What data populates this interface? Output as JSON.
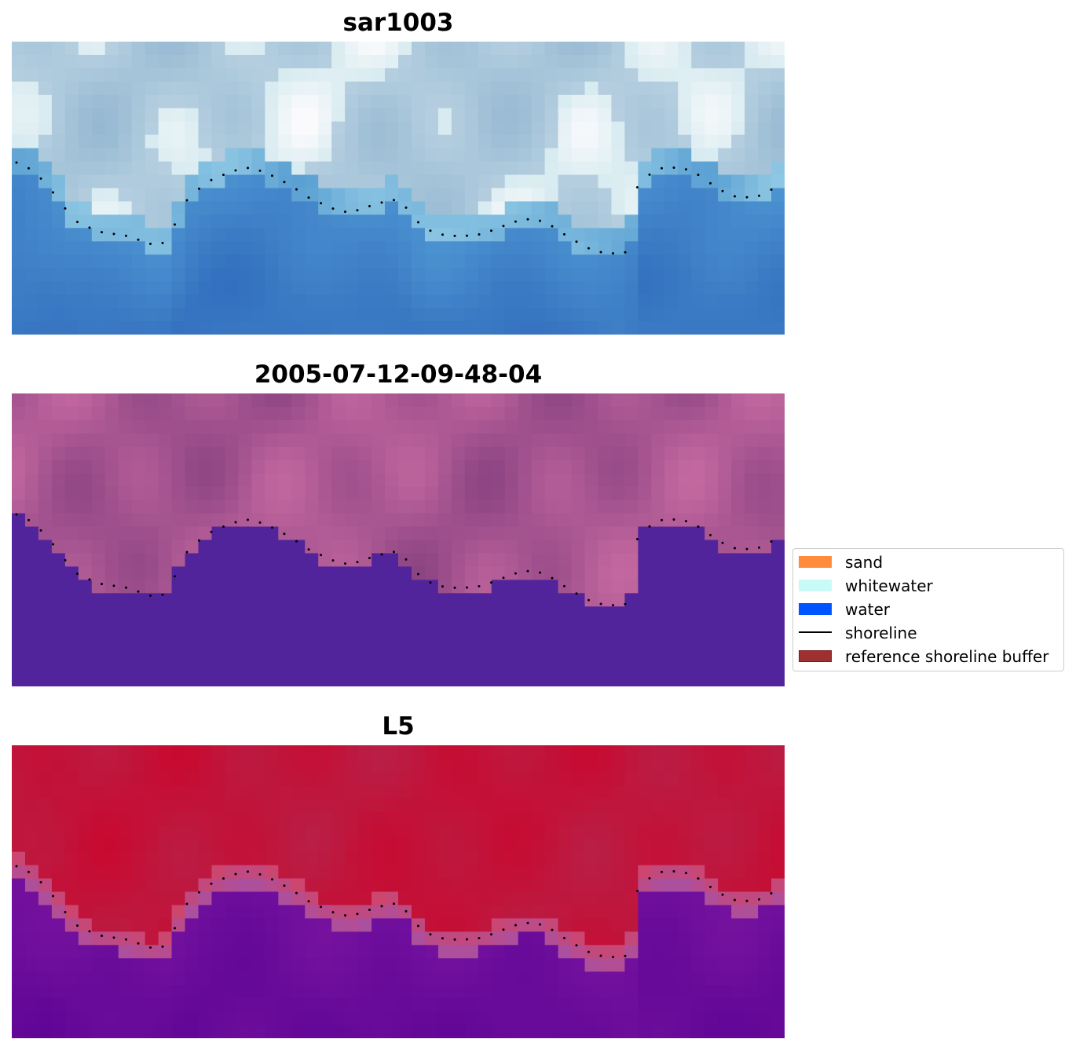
{
  "chart_data": [
    {
      "type": "heatmap",
      "title": "sar1003",
      "colormap": "blue-white",
      "grid": false,
      "axes": "off",
      "overlay": "shoreline"
    },
    {
      "type": "heatmap",
      "title": "2005-07-12-09-48-04",
      "colormap": "purple-pink",
      "grid": false,
      "axes": "off",
      "overlay": "shoreline"
    },
    {
      "type": "heatmap",
      "title": "L5",
      "colormap": "red-purple",
      "grid": false,
      "axes": "off",
      "overlay": "shoreline"
    }
  ],
  "legend": {
    "placement": "center-right",
    "items": [
      {
        "label": "sand",
        "color": "#ff8c3a",
        "kind": "patch"
      },
      {
        "label": "whitewater",
        "color": "#c8fbf7",
        "kind": "patch"
      },
      {
        "label": "water",
        "color": "#0055ff",
        "kind": "patch"
      },
      {
        "label": "shoreline",
        "color": "#000000",
        "kind": "line"
      },
      {
        "label": "reference shoreline buffer",
        "color": "#a03030",
        "kind": "patch"
      }
    ]
  }
}
